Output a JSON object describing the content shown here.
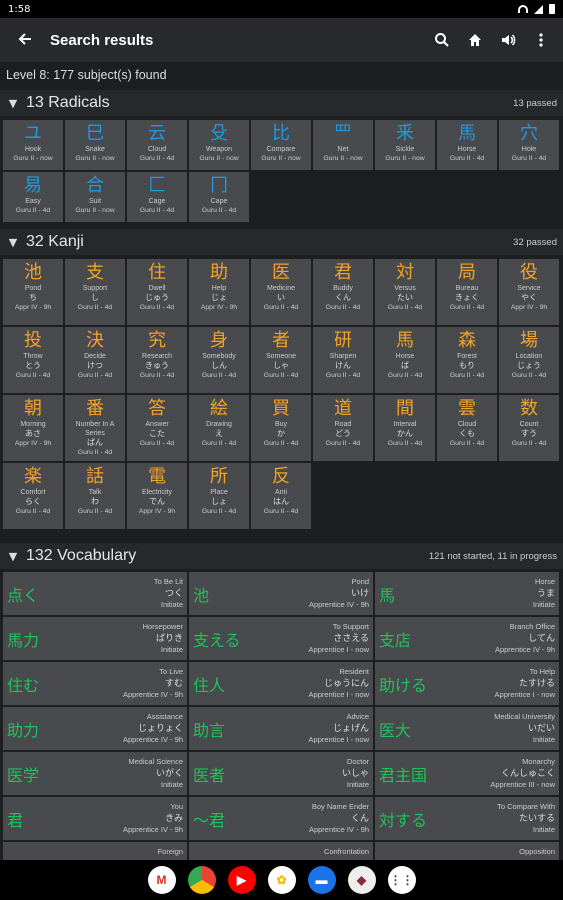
{
  "status": {
    "time": "1:58"
  },
  "appbar": {
    "back_icon": "arrow-left-icon",
    "title": "Search results"
  },
  "summary": "Level 8: 177 subject(s) found",
  "radicals": {
    "title": "13 Radicals",
    "status": "13 passed",
    "items": [
      {
        "glyph": "ユ",
        "meaning": "Hook",
        "srs": "Guru II - now"
      },
      {
        "glyph": "巳",
        "meaning": "Snake",
        "srs": "Guru II - now"
      },
      {
        "glyph": "云",
        "meaning": "Cloud",
        "srs": "Guru II - 4d"
      },
      {
        "glyph": "殳",
        "meaning": "Weapon",
        "srs": "Guru II - now"
      },
      {
        "glyph": "比",
        "meaning": "Compare",
        "srs": "Guru II - now"
      },
      {
        "glyph": "罒",
        "meaning": "Net",
        "srs": "Guru II - now"
      },
      {
        "glyph": "釆",
        "meaning": "Sickle",
        "srs": "Guru II - now"
      },
      {
        "glyph": "馬",
        "meaning": "Horse",
        "srs": "Guru II - 4d"
      },
      {
        "glyph": "穴",
        "meaning": "Hole",
        "srs": "Guru II - 4d"
      },
      {
        "glyph": "易",
        "meaning": "Easy",
        "srs": "Guru II - 4d"
      },
      {
        "glyph": "合",
        "meaning": "Suit",
        "srs": "Guru II - now"
      },
      {
        "glyph": "匚",
        "meaning": "Cage",
        "srs": "Guru II - 4d"
      },
      {
        "glyph": "冂",
        "meaning": "Cape",
        "srs": "Guru II - 4d"
      }
    ]
  },
  "kanji": {
    "title": "32 Kanji",
    "status": "32 passed",
    "items": [
      {
        "glyph": "池",
        "meaning": "Pond",
        "reading": "ち",
        "srs": "Appr IV - 9h"
      },
      {
        "glyph": "支",
        "meaning": "Support",
        "reading": "し",
        "srs": "Guru II - 4d"
      },
      {
        "glyph": "住",
        "meaning": "Dwell",
        "reading": "じゅう",
        "srs": "Guru II - 4d"
      },
      {
        "glyph": "助",
        "meaning": "Help",
        "reading": "じょ",
        "srs": "Appr IV - 9h"
      },
      {
        "glyph": "医",
        "meaning": "Medicine",
        "reading": "い",
        "srs": "Guru II - 4d"
      },
      {
        "glyph": "君",
        "meaning": "Buddy",
        "reading": "くん",
        "srs": "Guru II - 4d"
      },
      {
        "glyph": "対",
        "meaning": "Versus",
        "reading": "たい",
        "srs": "Guru II - 4d"
      },
      {
        "glyph": "局",
        "meaning": "Bureau",
        "reading": "きょく",
        "srs": "Guru II - 4d"
      },
      {
        "glyph": "役",
        "meaning": "Service",
        "reading": "やく",
        "srs": "Appr IV - 9h"
      },
      {
        "glyph": "投",
        "meaning": "Throw",
        "reading": "とう",
        "srs": "Guru II - 4d"
      },
      {
        "glyph": "決",
        "meaning": "Decide",
        "reading": "けつ",
        "srs": "Guru II - 4d"
      },
      {
        "glyph": "究",
        "meaning": "Research",
        "reading": "きゅう",
        "srs": "Guru II - 4d"
      },
      {
        "glyph": "身",
        "meaning": "Somebody",
        "reading": "しん",
        "srs": "Guru II - 4d"
      },
      {
        "glyph": "者",
        "meaning": "Someone",
        "reading": "しゃ",
        "srs": "Guru II - 4d"
      },
      {
        "glyph": "研",
        "meaning": "Sharpen",
        "reading": "けん",
        "srs": "Guru II - 4d"
      },
      {
        "glyph": "馬",
        "meaning": "Horse",
        "reading": "ば",
        "srs": "Guru II - 4d"
      },
      {
        "glyph": "森",
        "meaning": "Forest",
        "reading": "もり",
        "srs": "Guru II - 4d"
      },
      {
        "glyph": "場",
        "meaning": "Location",
        "reading": "じょう",
        "srs": "Guru II - 4d"
      },
      {
        "glyph": "朝",
        "meaning": "Morning",
        "reading": "あさ",
        "srs": "Appr IV - 9h"
      },
      {
        "glyph": "番",
        "meaning": "Number In A Series",
        "reading": "ばん",
        "srs": "Guru II - 4d"
      },
      {
        "glyph": "答",
        "meaning": "Answer",
        "reading": "こた",
        "srs": "Guru II - 4d"
      },
      {
        "glyph": "絵",
        "meaning": "Drawing",
        "reading": "え",
        "srs": "Guru II - 4d"
      },
      {
        "glyph": "買",
        "meaning": "Buy",
        "reading": "か",
        "srs": "Guru II - 4d"
      },
      {
        "glyph": "道",
        "meaning": "Road",
        "reading": "どう",
        "srs": "Guru II - 4d"
      },
      {
        "glyph": "間",
        "meaning": "Interval",
        "reading": "かん",
        "srs": "Guru II - 4d"
      },
      {
        "glyph": "雲",
        "meaning": "Cloud",
        "reading": "くも",
        "srs": "Guru II - 4d"
      },
      {
        "glyph": "数",
        "meaning": "Count",
        "reading": "すう",
        "srs": "Guru II - 4d"
      },
      {
        "glyph": "楽",
        "meaning": "Comfort",
        "reading": "らく",
        "srs": "Guru II - 4d"
      },
      {
        "glyph": "話",
        "meaning": "Talk",
        "reading": "わ",
        "srs": "Guru II - 4d"
      },
      {
        "glyph": "電",
        "meaning": "Electricity",
        "reading": "でん",
        "srs": "Appr IV - 9h"
      },
      {
        "glyph": "所",
        "meaning": "Place",
        "reading": "しょ",
        "srs": "Guru II - 4d"
      },
      {
        "glyph": "反",
        "meaning": "Anti",
        "reading": "はん",
        "srs": "Guru II - 4d"
      }
    ]
  },
  "vocabulary": {
    "title": "132 Vocabulary",
    "status": "121 not started, 11 in progress",
    "items": [
      {
        "word": "点く",
        "meaning": "To Be Lit",
        "reading": "つく",
        "srs": "Initiate"
      },
      {
        "word": "池",
        "meaning": "Pond",
        "reading": "いけ",
        "srs": "Apprentice IV - 9h"
      },
      {
        "word": "馬",
        "meaning": "Horse",
        "reading": "うま",
        "srs": "Initiate"
      },
      {
        "word": "馬力",
        "meaning": "Horsepower",
        "reading": "ばりき",
        "srs": "Initiate"
      },
      {
        "word": "支える",
        "meaning": "To Support",
        "reading": "ささえる",
        "srs": "Apprentice I - now"
      },
      {
        "word": "支店",
        "meaning": "Branch Office",
        "reading": "してん",
        "srs": "Apprentice IV - 9h"
      },
      {
        "word": "住む",
        "meaning": "To Live",
        "reading": "すむ",
        "srs": "Apprentice IV - 9h"
      },
      {
        "word": "住人",
        "meaning": "Resident",
        "reading": "じゅうにん",
        "srs": "Apprentice I - now"
      },
      {
        "word": "助ける",
        "meaning": "To Help",
        "reading": "たすける",
        "srs": "Apprentice I - now"
      },
      {
        "word": "助力",
        "meaning": "Assistance",
        "reading": "じょりょく",
        "srs": "Apprentice IV - 9h"
      },
      {
        "word": "助言",
        "meaning": "Advice",
        "reading": "じょげん",
        "srs": "Apprentice I - now"
      },
      {
        "word": "医大",
        "meaning": "Medical University",
        "reading": "いだい",
        "srs": "Initiate"
      },
      {
        "word": "医学",
        "meaning": "Medical Science",
        "reading": "いがく",
        "srs": "Initiate"
      },
      {
        "word": "医者",
        "meaning": "Doctor",
        "reading": "いしゃ",
        "srs": "Initiate"
      },
      {
        "word": "君主国",
        "meaning": "Monarchy",
        "reading": "くんしゅこく",
        "srs": "Apprentice III - now"
      },
      {
        "word": "君",
        "meaning": "You",
        "reading": "きみ",
        "srs": "Apprentice IV - 9h"
      },
      {
        "word": "〜君",
        "meaning": "Boy Name Ender",
        "reading": "くん",
        "srs": "Apprentice IV - 9h"
      },
      {
        "word": "対する",
        "meaning": "To Compare With",
        "reading": "たいする",
        "srs": "Initiate"
      },
      {
        "word": "",
        "meaning": "Foreign",
        "reading": "",
        "srs": ""
      },
      {
        "word": "",
        "meaning": "Confrontation",
        "reading": "",
        "srs": ""
      },
      {
        "word": "",
        "meaning": "Opposition",
        "reading": "",
        "srs": ""
      }
    ]
  },
  "dock": {
    "apps": [
      {
        "name": "gmail-icon",
        "label": "M",
        "color": "#ffffff",
        "fg": "#d93025"
      },
      {
        "name": "chrome-icon",
        "label": "",
        "color": "#34a853",
        "fg": "#ffffff"
      },
      {
        "name": "youtube-icon",
        "label": "▶",
        "color": "#ff0000",
        "fg": "#ffffff"
      },
      {
        "name": "photos-icon",
        "label": "✿",
        "color": "#ffffff",
        "fg": "#fbbc05"
      },
      {
        "name": "messages-icon",
        "label": "▬",
        "color": "#1a73e8",
        "fg": "#ffffff"
      },
      {
        "name": "app-icon",
        "label": "◆",
        "color": "#eeeeee",
        "fg": "#8a2b3a"
      },
      {
        "name": "app-drawer-icon",
        "label": "⋮⋮",
        "color": "#ffffff",
        "fg": "#444444"
      }
    ]
  }
}
